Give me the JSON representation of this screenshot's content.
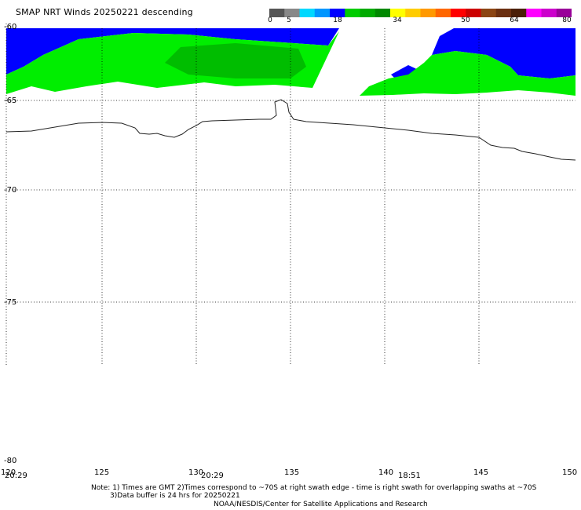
{
  "title": "SMAP NRT Winds  20250221 descending",
  "colorbar": {
    "tick_labels": [
      "0",
      "5",
      "18",
      "34",
      "50",
      "64",
      "80"
    ],
    "segments": [
      "#555555",
      "#888888",
      "#00d8ff",
      "#0096ff",
      "#0000ff",
      "#00cc00",
      "#00aa00",
      "#008800",
      "#ffff00",
      "#ffcc00",
      "#ff9900",
      "#ff6600",
      "#ff0000",
      "#cc0000",
      "#8b4513",
      "#6b2f10",
      "#4a1f08",
      "#ff00ff",
      "#cc00cc",
      "#990099"
    ]
  },
  "map": {
    "lat_labels": [
      "-60",
      "-65",
      "-70",
      "-75",
      "-80"
    ],
    "lon_labels": [
      "120",
      "125",
      "130",
      "135",
      "140",
      "145",
      "150"
    ],
    "time_labels": [
      "20:29",
      "20:29",
      "18:51"
    ],
    "swath_colors": {
      "high": "#0000ff",
      "mid": "#00ee00",
      "core": "#00aa00"
    }
  },
  "notes": {
    "line1": "Note: 1) Times are GMT 2)Times correspond to ~70S at right swath edge - time is right swath for overlapping swaths at ~70S",
    "line2": "3)Data buffer is 24 hrs for 20250221",
    "line3": "NOAA/NESDIS/Center for Satellite Applications and Research"
  }
}
